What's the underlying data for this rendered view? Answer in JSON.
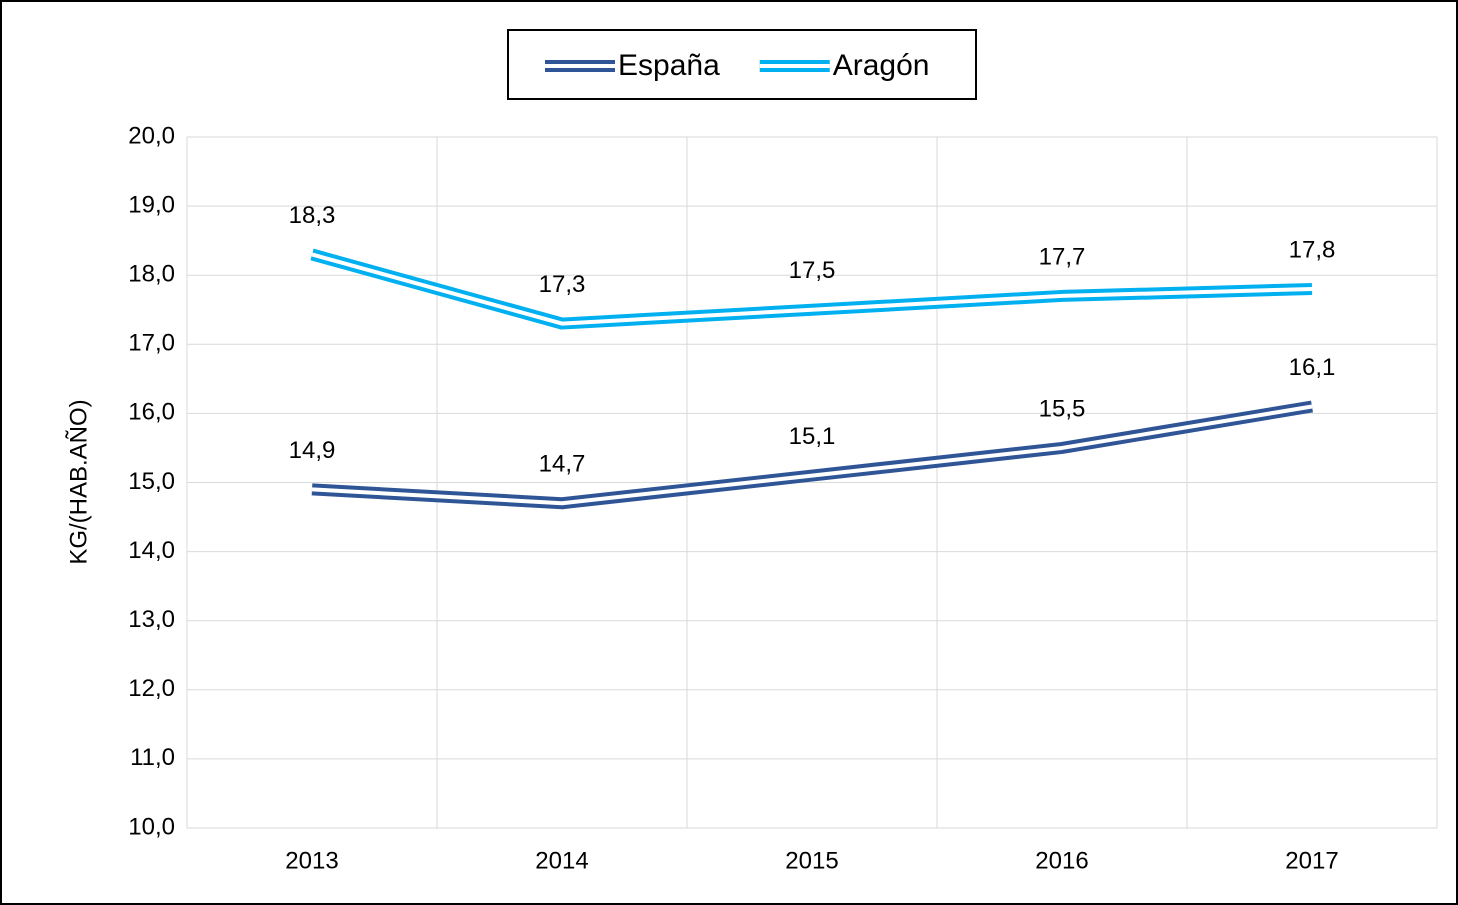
{
  "chart_data": {
    "type": "line",
    "y_label": "KG/(HAB.AÑO)",
    "categories": [
      "2013",
      "2014",
      "2015",
      "2016",
      "2017"
    ],
    "series": [
      {
        "name": "España",
        "color": "#2f5597",
        "values": [
          14.9,
          14.7,
          15.1,
          15.5,
          16.1
        ],
        "value_labels": [
          "14,9",
          "14,7",
          "15,1",
          "15,5",
          "16,1"
        ]
      },
      {
        "name": "Aragón",
        "color": "#00b0f0",
        "values": [
          18.3,
          17.3,
          17.5,
          17.7,
          17.8
        ],
        "value_labels": [
          "18,3",
          "17,3",
          "17,5",
          "17,7",
          "17,8"
        ]
      }
    ],
    "ylim": [
      10,
      20
    ],
    "yticks": [
      {
        "value": 10,
        "label": "10,0"
      },
      {
        "value": 11,
        "label": "11,0"
      },
      {
        "value": 12,
        "label": "12,0"
      },
      {
        "value": 13,
        "label": "13,0"
      },
      {
        "value": 14,
        "label": "14,0"
      },
      {
        "value": 15,
        "label": "15,0"
      },
      {
        "value": 16,
        "label": "16,0"
      },
      {
        "value": 17,
        "label": "17,0"
      },
      {
        "value": 18,
        "label": "18,0"
      },
      {
        "value": 19,
        "label": "19,0"
      },
      {
        "value": 20,
        "label": "20,0"
      }
    ],
    "grid": true,
    "legend": "top"
  }
}
